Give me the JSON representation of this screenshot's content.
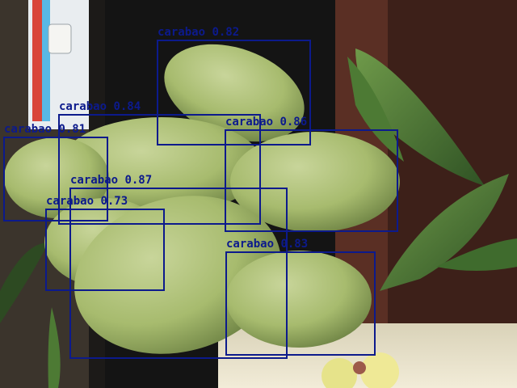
{
  "detections": [
    {
      "label": "carabao",
      "score": "0.82"
    },
    {
      "label": "carabao",
      "score": "0.84"
    },
    {
      "label": "carabao",
      "score": "0.81"
    },
    {
      "label": "carabao",
      "score": "0.86"
    },
    {
      "label": "carabao",
      "score": "0.87"
    },
    {
      "label": "carabao",
      "score": "0.73"
    },
    {
      "label": "carabao",
      "score": "0.83"
    }
  ],
  "colors": {
    "box": "#0c1a8c"
  }
}
